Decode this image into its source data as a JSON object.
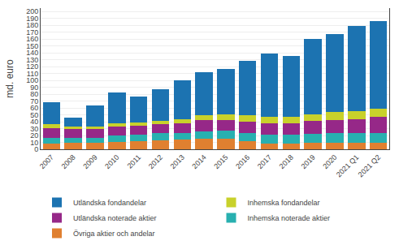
{
  "chart_data": {
    "type": "bar",
    "stacked": true,
    "categories": [
      "2007",
      "2008",
      "2009",
      "2010",
      "2011",
      "2012",
      "2013",
      "2014",
      "2015",
      "2016",
      "2017",
      "2018",
      "2019",
      "2020",
      "2021 Q1",
      "2021 Q2"
    ],
    "series": [
      {
        "name": "Övriga aktier och andelar",
        "color": "#e08030",
        "values": [
          8,
          9,
          9,
          11,
          12,
          13,
          14,
          15,
          15,
          12,
          8,
          8,
          9,
          9,
          9,
          9
        ]
      },
      {
        "name": "Inhemska noterade aktier",
        "color": "#28b0b0",
        "values": [
          9,
          8,
          8,
          9,
          9,
          10,
          10,
          11,
          12,
          12,
          13,
          13,
          13,
          14,
          14,
          15
        ]
      },
      {
        "name": "Utländska noterade aktier",
        "color": "#962888",
        "values": [
          14,
          12,
          12,
          13,
          13,
          13,
          14,
          16,
          16,
          16,
          17,
          17,
          19,
          20,
          21,
          23
        ]
      },
      {
        "name": "Inhemska fondandelar",
        "color": "#c8d12b",
        "values": [
          5,
          4,
          4,
          5,
          5,
          5,
          6,
          7,
          8,
          9,
          9,
          9,
          10,
          11,
          11,
          12
        ]
      },
      {
        "name": "Utländska fondandelar",
        "color": "#1c73b1",
        "values": [
          32,
          13,
          31,
          45,
          37,
          46,
          56,
          63,
          66,
          80,
          92,
          89,
          109,
          113,
          124,
          127
        ]
      }
    ],
    "ylabel": "md. euro",
    "ylim": [
      0,
      205
    ],
    "yticks": [
      0,
      10,
      20,
      30,
      40,
      50,
      60,
      70,
      80,
      90,
      100,
      110,
      120,
      130,
      140,
      150,
      160,
      170,
      180,
      190,
      200
    ],
    "grid": true,
    "legend": "bottom"
  }
}
